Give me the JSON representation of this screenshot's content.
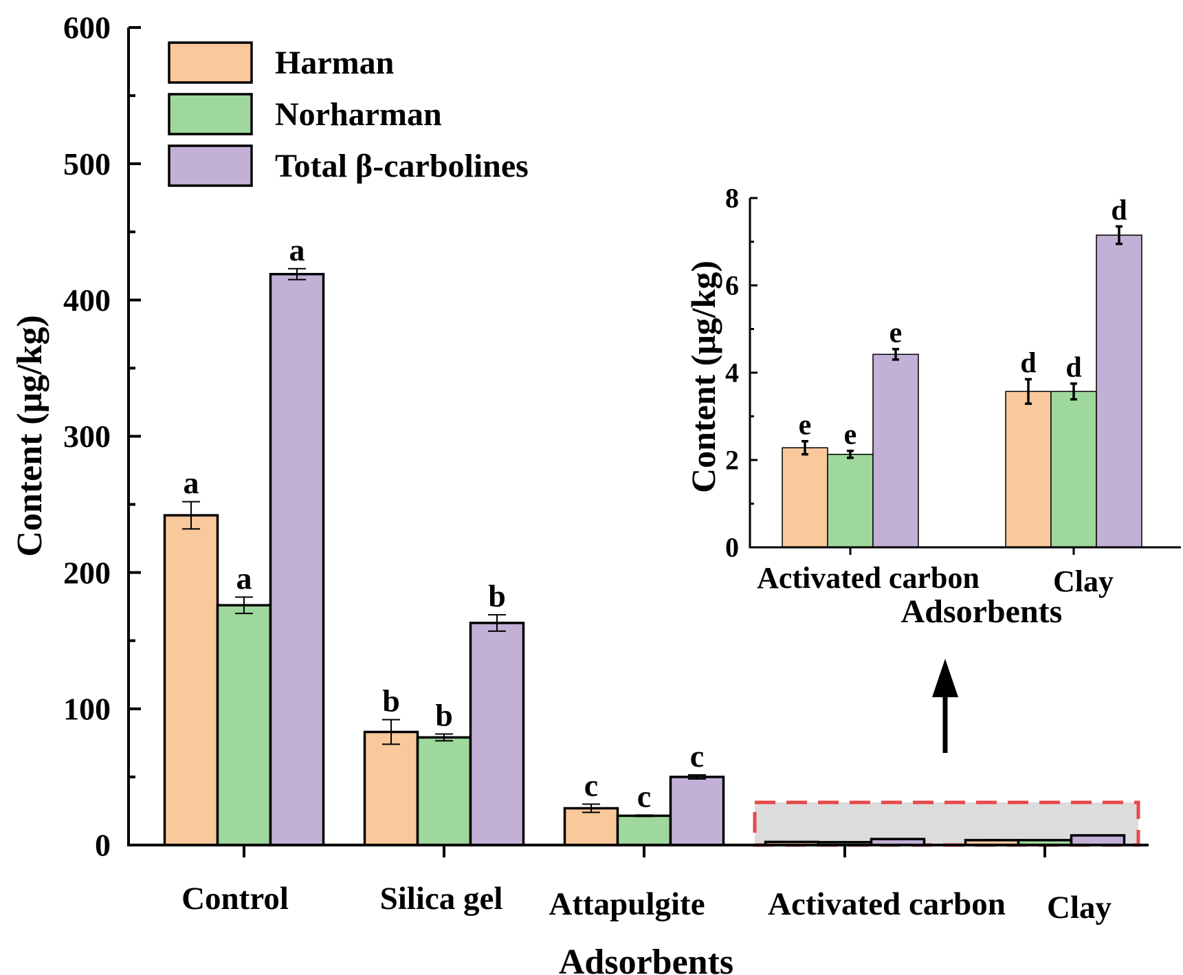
{
  "colors": {
    "Harman": "#F9C89B",
    "Norharman": "#9ED89C",
    "Total β-carbolines": "#C2B0D6",
    "highlight_fill": "#DCDCDC",
    "highlight_border": "#E8484A",
    "axis": "#000000"
  },
  "chart_data": [
    {
      "type": "bar",
      "xlabel": "Adsorbents",
      "ylabel": "Content (μg/kg)",
      "ylim": [
        0,
        600
      ],
      "yticks": [
        "0",
        "100",
        "200",
        "300",
        "400",
        "500",
        "600"
      ],
      "categories": [
        "Control",
        "Silica gel",
        "Attapulgite",
        "Activated carbon",
        "Clay"
      ],
      "legend": {
        "position": "top-left",
        "entries": [
          "Harman",
          "Norharman",
          "Total β-carbolines"
        ]
      },
      "grid": false,
      "series": [
        {
          "name": "Harman",
          "values": [
            242,
            83,
            27,
            2.3,
            3.6
          ],
          "errors": [
            10,
            9,
            3,
            0.15,
            0.3
          ],
          "labels": [
            "a",
            "b",
            "c",
            "",
            ""
          ]
        },
        {
          "name": "Norharman",
          "values": [
            176,
            79,
            21.5,
            2.1,
            3.6
          ],
          "errors": [
            6,
            2.5,
            0.5,
            0.1,
            0.2
          ],
          "labels": [
            "a",
            "b",
            "c",
            "",
            ""
          ]
        },
        {
          "name": "Total β-carbolines",
          "values": [
            419,
            163,
            50,
            4.4,
            7.1
          ],
          "errors": [
            4,
            6,
            1.5,
            0.15,
            0.2
          ],
          "labels": [
            "a",
            "b",
            "c",
            "",
            ""
          ]
        }
      ]
    },
    {
      "type": "bar",
      "xlabel": "Adsorbents",
      "ylabel": "Content (μg/kg)",
      "ylim": [
        0,
        8
      ],
      "yticks": [
        "0",
        "2",
        "4",
        "6",
        "8"
      ],
      "categories": [
        "Activated carbon",
        "Clay"
      ],
      "grid": false,
      "series": [
        {
          "name": "Harman",
          "values": [
            2.28,
            3.57
          ],
          "errors": [
            0.15,
            0.28
          ],
          "labels": [
            "e",
            "d"
          ]
        },
        {
          "name": "Norharman",
          "values": [
            2.13,
            3.57
          ],
          "errors": [
            0.08,
            0.18
          ],
          "labels": [
            "e",
            "d"
          ]
        },
        {
          "name": "Total β-carbolines",
          "values": [
            4.42,
            7.15
          ],
          "errors": [
            0.12,
            0.2
          ],
          "labels": [
            "e",
            "d"
          ]
        }
      ]
    }
  ]
}
